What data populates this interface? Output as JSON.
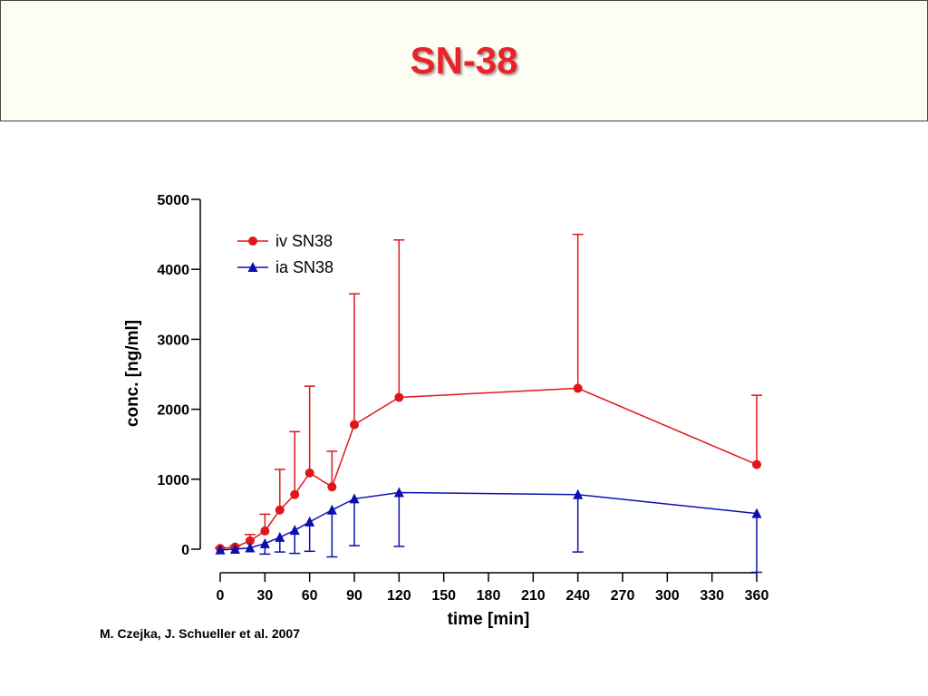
{
  "slide": {
    "title": "SN-38",
    "citation": "M. Czejka, J. Schueller et al. 2007"
  },
  "colors": {
    "title": "#e8242b",
    "iv": "#e0161b",
    "ia": "#0b0fb0",
    "axis": "#000000"
  },
  "chart_data": {
    "type": "line",
    "xlabel": "time [min]",
    "ylabel": "conc. [ng/ml]",
    "xlim": [
      0,
      360
    ],
    "ylim": [
      0,
      5000
    ],
    "xticks": [
      0,
      30,
      60,
      90,
      120,
      150,
      180,
      210,
      240,
      270,
      300,
      330,
      360
    ],
    "yticks": [
      0,
      1000,
      2000,
      3000,
      4000,
      5000
    ],
    "grid": false,
    "legend_position": "top-left",
    "series": [
      {
        "name": "iv SN38",
        "marker": "circle",
        "color": "#e0161b",
        "error_direction": "up",
        "x": [
          0,
          10,
          20,
          30,
          40,
          50,
          60,
          75,
          90,
          120,
          240,
          360
        ],
        "y": [
          10,
          30,
          120,
          260,
          560,
          780,
          1090,
          890,
          1780,
          2170,
          2300,
          1210
        ],
        "err": [
          10,
          20,
          90,
          240,
          580,
          900,
          1240,
          510,
          1870,
          2250,
          2200,
          990
        ]
      },
      {
        "name": "ia SN38",
        "marker": "triangle",
        "color": "#0b0fb0",
        "error_direction": "down",
        "x": [
          0,
          10,
          20,
          30,
          40,
          50,
          60,
          75,
          90,
          120,
          240,
          360
        ],
        "y": [
          -10,
          0,
          20,
          80,
          170,
          270,
          390,
          560,
          720,
          810,
          780,
          510
        ],
        "err": [
          0,
          0,
          0,
          150,
          210,
          330,
          420,
          670,
          670,
          770,
          820,
          840
        ]
      }
    ]
  }
}
